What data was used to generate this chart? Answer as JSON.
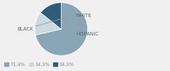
{
  "labels": [
    "BLACK",
    "WHITE",
    "HISPANIC"
  ],
  "values": [
    71.4,
    14.3,
    14.3
  ],
  "colors": [
    "#8aa5b5",
    "#c9dae3",
    "#2d5d78"
  ],
  "legend_labels": [
    "71.4%",
    "14.3%",
    "14.3%"
  ],
  "label_fontsize": 5.0,
  "legend_fontsize": 4.8,
  "startangle": 90,
  "background_color": "#f0f0f0"
}
